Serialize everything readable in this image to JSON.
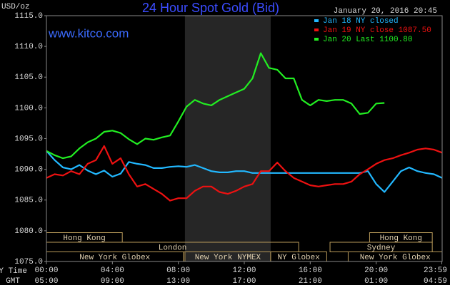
{
  "chart_data": {
    "type": "line",
    "title": "24 Hour Spot Gold (Bid)",
    "y_label": "USD/oz",
    "watermark": "www.kitco.com",
    "timestamp": "January 20, 2016 20:45",
    "x_row_label": "NY Time",
    "x2_row_label": "GMT",
    "x": [
      0,
      0.5,
      1,
      1.5,
      2,
      2.5,
      3,
      3.5,
      4,
      4.5,
      5,
      5.5,
      6,
      6.5,
      7,
      7.5,
      8,
      8.5,
      9,
      9.5,
      10,
      10.5,
      11,
      11.5,
      12,
      12.5,
      13,
      13.5,
      14,
      14.5,
      15,
      15.5,
      16,
      16.5,
      17,
      17.5,
      18,
      18.5,
      19,
      19.5,
      20,
      20.5,
      21,
      21.5,
      22,
      22.5,
      23,
      23.5,
      24
    ],
    "xlim": [
      0,
      24
    ],
    "xticks": [
      {
        "value": 0,
        "label": "00:00"
      },
      {
        "value": 4,
        "label": "04:00"
      },
      {
        "value": 8,
        "label": "08:00"
      },
      {
        "value": 12,
        "label": "12:00"
      },
      {
        "value": 16,
        "label": "16:00"
      },
      {
        "value": 20,
        "label": "20:00"
      },
      {
        "value": 23.98,
        "label": "23:59"
      }
    ],
    "x2tick_labels": [
      "05:00",
      "09:00",
      "13:00",
      "17:00",
      "21:00",
      "01:00",
      "04:59"
    ],
    "ylim": [
      1075,
      1115
    ],
    "yticks": [
      {
        "value": 1075,
        "label": "1075.0"
      },
      {
        "value": 1080,
        "label": "1080.0"
      },
      {
        "value": 1085,
        "label": "1085.0"
      },
      {
        "value": 1090,
        "label": "1090.0"
      },
      {
        "value": 1095,
        "label": "1095.0"
      },
      {
        "value": 1100,
        "label": "1100.0"
      },
      {
        "value": 1105,
        "label": "1105.0"
      },
      {
        "value": 1110,
        "label": "1110.0"
      },
      {
        "value": 1115,
        "label": "1115.0"
      }
    ],
    "shaded_region": [
      8.4,
      13.6
    ],
    "legend": "upper right",
    "series": [
      {
        "name": "Jan 18 NY closed",
        "color": "#22b8ff",
        "values": [
          1093.0,
          1091.5,
          1090.3,
          1090.0,
          1090.7,
          1089.8,
          1089.2,
          1089.8,
          1088.8,
          1089.3,
          1091.2,
          1090.9,
          1090.7,
          1090.2,
          1090.2,
          1090.4,
          1090.5,
          1090.4,
          1090.7,
          1090.2,
          1089.7,
          1089.5,
          1089.5,
          1089.7,
          1089.7,
          1089.4,
          1089.4,
          1089.4,
          1089.4,
          1089.4,
          1089.4,
          1089.4,
          1089.4,
          1089.4,
          1089.4,
          1089.4,
          1089.4,
          1089.4,
          1089.4,
          1089.7,
          1087.6,
          1086.3,
          1088.0,
          1089.7,
          1090.3,
          1089.7,
          1089.4,
          1089.2,
          1088.6
        ]
      },
      {
        "name": "Jan 19 NY close 1087.50",
        "color": "#ee1111",
        "values": [
          1088.6,
          1089.2,
          1089.0,
          1089.7,
          1089.2,
          1090.9,
          1091.5,
          1093.8,
          1090.9,
          1091.8,
          1089.2,
          1087.2,
          1087.6,
          1086.8,
          1086.0,
          1084.9,
          1085.3,
          1085.3,
          1086.5,
          1087.2,
          1087.2,
          1086.3,
          1086.0,
          1086.5,
          1087.2,
          1087.6,
          1089.7,
          1089.7,
          1091.1,
          1089.7,
          1088.6,
          1088.0,
          1087.4,
          1087.2,
          1087.4,
          1087.6,
          1087.6,
          1088.0,
          1089.2,
          1090.0,
          1090.9,
          1091.5,
          1091.8,
          1092.3,
          1092.7,
          1093.2,
          1093.4,
          1093.2,
          1092.7
        ]
      },
      {
        "name": "Jan 20 Last 1100.80",
        "color": "#22ee22",
        "values": [
          1093.0,
          1092.3,
          1091.8,
          1092.1,
          1093.4,
          1094.4,
          1095.0,
          1096.1,
          1096.3,
          1095.9,
          1094.9,
          1094.1,
          1095.0,
          1094.8,
          1095.2,
          1095.5,
          1097.8,
          1100.2,
          1101.3,
          1100.7,
          1100.4,
          1101.3,
          1101.9,
          1102.5,
          1103.1,
          1104.8,
          1108.9,
          1106.5,
          1106.2,
          1104.8,
          1104.8,
          1101.3,
          1100.4,
          1101.3,
          1101.1,
          1101.3,
          1101.3,
          1100.7,
          1099.0,
          1099.2,
          1100.7,
          1100.8,
          null,
          null,
          null,
          null,
          null,
          null,
          null
        ]
      }
    ],
    "sessions": [
      [
        {
          "label": "Hong Kong",
          "start": 0,
          "end": 4.6
        },
        {
          "label": "Hong Kong",
          "start": 19.6,
          "end": 23.4
        }
      ],
      [
        {
          "label": "London",
          "start": 0,
          "end": 15.3
        },
        {
          "label": "Sydney",
          "start": 17.2,
          "end": 23.4
        }
      ],
      [
        {
          "label": "New York Globex",
          "start": 0,
          "end": 8.3
        },
        {
          "label": "New York NYMEX",
          "start": 8.4,
          "end": 13.6
        },
        {
          "label": "NY Globex",
          "start": 13.6,
          "end": 17.0
        },
        {
          "label": "New York Globex",
          "start": 18.3,
          "end": 24
        }
      ]
    ]
  }
}
